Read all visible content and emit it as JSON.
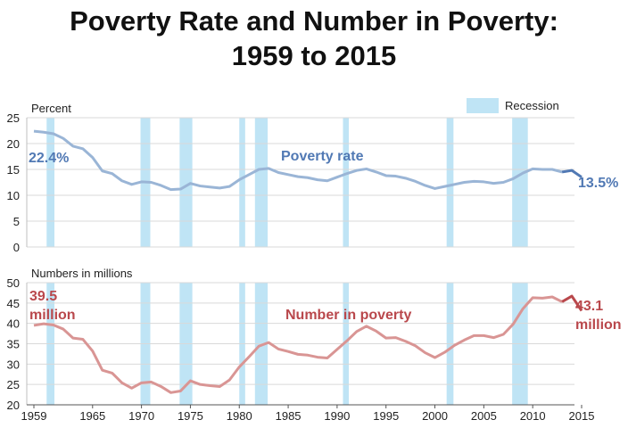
{
  "title_line1": "Poverty Rate and Number in Poverty:",
  "title_line2": "1959 to 2015",
  "legend": {
    "label": "Recession",
    "color": "#bfe4f5"
  },
  "recessions": [
    [
      1960.3,
      1961.1
    ],
    [
      1969.9,
      1970.9
    ],
    [
      1973.9,
      1975.2
    ],
    [
      1980.0,
      1980.6
    ],
    [
      1981.6,
      1982.9
    ],
    [
      1990.6,
      1991.2
    ],
    [
      2001.2,
      2001.9
    ],
    [
      2007.9,
      2009.5
    ]
  ],
  "chart_data": [
    {
      "type": "line",
      "name": "rate",
      "unit_label": "Percent",
      "series_label": "Poverty rate",
      "start_label": "22.4%",
      "end_label": "13.5%",
      "color": "#9ab5d6",
      "dark_color": "#5179b4",
      "ylim": [
        0,
        25
      ],
      "yticks": [
        0,
        5,
        10,
        15,
        20,
        25
      ],
      "x": [
        1959,
        1960,
        1961,
        1962,
        1963,
        1964,
        1965,
        1966,
        1967,
        1968,
        1969,
        1970,
        1971,
        1972,
        1973,
        1974,
        1975,
        1976,
        1977,
        1978,
        1979,
        1980,
        1981,
        1982,
        1983,
        1984,
        1985,
        1986,
        1987,
        1988,
        1989,
        1990,
        1991,
        1992,
        1993,
        1994,
        1995,
        1996,
        1997,
        1998,
        1999,
        2000,
        2001,
        2002,
        2003,
        2004,
        2005,
        2006,
        2007,
        2008,
        2009,
        2010,
        2011,
        2012,
        2013,
        2014,
        2015
      ],
      "values": [
        22.4,
        22.2,
        21.9,
        21.0,
        19.5,
        19.0,
        17.3,
        14.7,
        14.2,
        12.8,
        12.1,
        12.6,
        12.5,
        11.9,
        11.1,
        11.2,
        12.3,
        11.8,
        11.6,
        11.4,
        11.7,
        13.0,
        14.0,
        15.0,
        15.2,
        14.4,
        14.0,
        13.6,
        13.4,
        13.0,
        12.8,
        13.5,
        14.2,
        14.8,
        15.1,
        14.5,
        13.8,
        13.7,
        13.3,
        12.7,
        11.9,
        11.3,
        11.7,
        12.1,
        12.5,
        12.7,
        12.6,
        12.3,
        12.5,
        13.2,
        14.3,
        15.1,
        15.0,
        15.0,
        14.5,
        14.8,
        13.5
      ],
      "dark_from": 2013
    },
    {
      "type": "line",
      "name": "number",
      "unit_label": "Numbers in millions",
      "series_label": "Number in poverty",
      "start_label_1": "39.5",
      "start_label_2": "million",
      "end_label_1": "43.1",
      "end_label_2": "million",
      "color": "#d99594",
      "dark_color": "#b9484c",
      "ylim": [
        20,
        50
      ],
      "yticks": [
        20,
        25,
        30,
        35,
        40,
        45,
        50
      ],
      "x": [
        1959,
        1960,
        1961,
        1962,
        1963,
        1964,
        1965,
        1966,
        1967,
        1968,
        1969,
        1970,
        1971,
        1972,
        1973,
        1974,
        1975,
        1976,
        1977,
        1978,
        1979,
        1980,
        1981,
        1982,
        1983,
        1984,
        1985,
        1986,
        1987,
        1988,
        1989,
        1990,
        1991,
        1992,
        1993,
        1994,
        1995,
        1996,
        1997,
        1998,
        1999,
        2000,
        2001,
        2002,
        2003,
        2004,
        2005,
        2006,
        2007,
        2008,
        2009,
        2010,
        2011,
        2012,
        2013,
        2014,
        2015
      ],
      "values": [
        39.5,
        39.9,
        39.6,
        38.6,
        36.4,
        36.1,
        33.2,
        28.5,
        27.8,
        25.4,
        24.1,
        25.4,
        25.6,
        24.5,
        23.0,
        23.4,
        25.9,
        25.0,
        24.7,
        24.5,
        26.1,
        29.3,
        31.8,
        34.4,
        35.3,
        33.7,
        33.1,
        32.4,
        32.2,
        31.7,
        31.5,
        33.6,
        35.7,
        38.0,
        39.3,
        38.1,
        36.4,
        36.5,
        35.6,
        34.5,
        32.8,
        31.6,
        32.9,
        34.6,
        35.9,
        37.0,
        37.0,
        36.5,
        37.3,
        39.8,
        43.6,
        46.3,
        46.2,
        46.5,
        45.3,
        46.7,
        43.1
      ],
      "dark_from": 2013
    }
  ],
  "x_axis": {
    "xlim": [
      1959,
      2015
    ],
    "ticks": [
      1959,
      1965,
      1970,
      1975,
      1980,
      1985,
      1990,
      1995,
      2000,
      2005,
      2010,
      2015
    ]
  }
}
